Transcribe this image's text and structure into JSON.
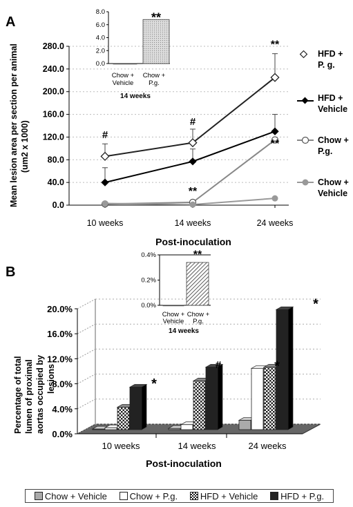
{
  "chart_data": [
    {
      "panel": "A",
      "type": "line",
      "ylabel": "Mean lesion area per section per animal (um2 x 1000)",
      "xlabel": "Post-inoculation",
      "categories": [
        "10 weeks",
        "14 weeks",
        "24 weeks"
      ],
      "yticks": [
        "0.0",
        "40.0",
        "80.0",
        "120.0",
        "160.0",
        "200.0",
        "240.0",
        "280.0"
      ],
      "ylim": [
        0,
        280
      ],
      "series": [
        {
          "name": "HFD + P. g.",
          "values": [
            86,
            110,
            225
          ],
          "errors": [
            22,
            24,
            42
          ],
          "marker": "open-diamond",
          "color": "#222222"
        },
        {
          "name": "HFD + Vehicle",
          "values": [
            40,
            77,
            130
          ],
          "errors": [
            26,
            22,
            30
          ],
          "marker": "filled-diamond",
          "color": "#000000"
        },
        {
          "name": "Chow + P.g.",
          "values": [
            2,
            5,
            115
          ],
          "errors": [
            0,
            0,
            0
          ],
          "marker": "open-circle",
          "color": "#888888"
        },
        {
          "name": "Chow + Vehicle",
          "values": [
            3,
            1,
            12
          ],
          "errors": [
            0,
            0,
            0
          ],
          "marker": "filled-circle",
          "color": "#999999"
        }
      ],
      "annotations": [
        {
          "text": "#",
          "x": "10 weeks"
        },
        {
          "text": "#",
          "x": "14 weeks"
        },
        {
          "text": "**",
          "x": "14 weeks"
        },
        {
          "text": "**",
          "x": "24 weeks"
        },
        {
          "text": "**",
          "x": "24 weeks"
        }
      ],
      "inset": {
        "type": "bar",
        "categories": [
          "Chow + Vehicle",
          "Chow + P.g."
        ],
        "values": [
          0.0,
          6.8
        ],
        "yticks": [
          "0.0",
          "2.0",
          "4.0",
          "6.0",
          "8.0"
        ],
        "ylim": [
          0,
          8
        ],
        "caption": "14 weeks",
        "annotation": "**"
      }
    },
    {
      "panel": "B",
      "type": "bar",
      "ylabel": "Percentage of total lumen of proximal aortas occupied by lesions",
      "xlabel": "Post-inoculation",
      "categories": [
        "10 weeks",
        "14 weeks",
        "24 weeks"
      ],
      "yticks": [
        "0.0%",
        "4.0%",
        "8.0%",
        "12.0%",
        "16.0%",
        "20.0%"
      ],
      "ylim": [
        0,
        20
      ],
      "series": [
        {
          "name": "Chow + Vehicle",
          "values": [
            0.1,
            0.2,
            1.5
          ]
        },
        {
          "name": "Chow + P.g.",
          "values": [
            0.3,
            0.8,
            9.8
          ]
        },
        {
          "name": "HFD + Vehicle",
          "values": [
            3.6,
            7.8,
            10.0
          ]
        },
        {
          "name": "HFD + P.g.",
          "values": [
            6.8,
            10.0,
            19.2
          ]
        }
      ],
      "annotations": [
        {
          "text": "*",
          "x": "10 weeks"
        },
        {
          "text": "#",
          "x": "14 weeks"
        },
        {
          "text": "*",
          "x": "24 weeks"
        },
        {
          "text": "*",
          "x": "24 weeks"
        }
      ],
      "inset": {
        "type": "bar",
        "categories": [
          "Chow + Vehicle",
          "Chow + P.g."
        ],
        "values": [
          0.0,
          0.34
        ],
        "yticks": [
          "0.0%",
          "0.2%",
          "0.4%"
        ],
        "ylim": [
          0,
          0.4
        ],
        "caption": "14 weeks",
        "annotation": "**"
      }
    }
  ],
  "labels": {
    "panelA": "A",
    "panelB": "B",
    "legendA": [
      "HFD +",
      "P. g.",
      "HFD +",
      "Vehicle",
      "Chow +",
      "P.g.",
      "Chow +",
      "Vehicle"
    ],
    "insetA_x": [
      "Chow +",
      "Vehicle",
      "Chow +",
      "P.g."
    ],
    "insetB_x": [
      "Chow +",
      "Vehicle",
      "Chow +",
      "P.g."
    ],
    "ylabelA_lines": [
      "Mean lesion area per section per animal",
      "(um2 x 1000)"
    ],
    "ylabelB_lines": [
      "Percentage of total",
      "lumen of proximal",
      "aortas occupied by",
      "lesions"
    ]
  },
  "legendB": [
    "Chow + Vehicle",
    "Chow + P.g.",
    "HFD + Vehicle",
    "HFD + P.g."
  ]
}
